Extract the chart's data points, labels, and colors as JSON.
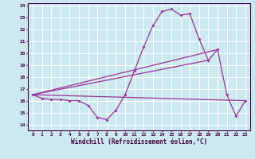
{
  "xlabel": "Windchill (Refroidissement éolien,°C)",
  "xlim": [
    -0.5,
    23.5
  ],
  "ylim": [
    13.5,
    24.2
  ],
  "yticks": [
    14,
    15,
    16,
    17,
    18,
    19,
    20,
    21,
    22,
    23,
    24
  ],
  "xticks": [
    0,
    1,
    2,
    3,
    4,
    5,
    6,
    7,
    8,
    9,
    10,
    11,
    12,
    13,
    14,
    15,
    16,
    17,
    18,
    19,
    20,
    21,
    22,
    23
  ],
  "background_color": "#cce9f0",
  "grid_color": "#ffffff",
  "line_color": "#993399",
  "main_y": [
    16.5,
    16.2,
    16.1,
    16.1,
    16.0,
    16.0,
    15.6,
    14.6,
    14.4,
    15.2,
    16.5,
    18.5,
    20.5,
    22.3,
    23.5,
    23.7,
    23.2,
    23.3,
    21.2,
    19.4,
    20.3,
    16.5,
    14.7,
    16.0
  ],
  "trend1_x": [
    0,
    23
  ],
  "trend1_y": [
    16.5,
    16.0
  ],
  "trend2_x": [
    0,
    20
  ],
  "trend2_y": [
    16.5,
    20.3
  ],
  "trend3_x": [
    0,
    19
  ],
  "trend3_y": [
    16.5,
    19.4
  ]
}
